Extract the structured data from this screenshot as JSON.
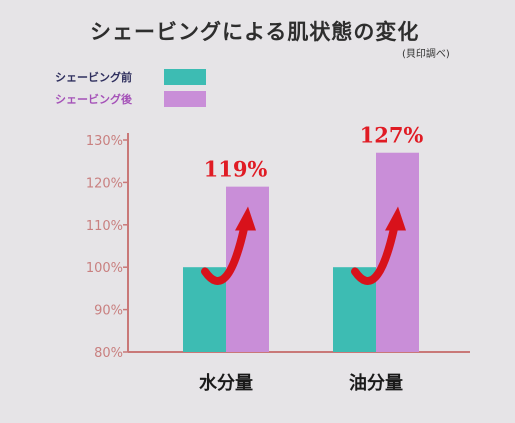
{
  "title": "シェービングによる肌状態の変化",
  "source_note": "(貝印調べ)",
  "colors": {
    "before": "#3dbcb3",
    "after": "#c98ed8",
    "axis": "#c97878",
    "tick_text": "#c98080",
    "value_label": "#e01b24",
    "arrow": "#d8121b",
    "legend_before_text": "#2f2f5e",
    "legend_after_text": "#a552b8"
  },
  "chart_data": {
    "type": "bar",
    "categories": [
      "水分量",
      "油分量"
    ],
    "series": [
      {
        "name": "シェービング前",
        "values": [
          100,
          100
        ]
      },
      {
        "name": "シェービング後",
        "values": [
          119,
          127
        ]
      }
    ],
    "value_labels": [
      "119%",
      "127%"
    ],
    "y_ticks": [
      "80%",
      "90%",
      "100%",
      "110%",
      "120%",
      "130%"
    ],
    "ylim": [
      80,
      130
    ],
    "xlabel": "",
    "ylabel": "",
    "legend_position": "top-left",
    "grid": false
  }
}
